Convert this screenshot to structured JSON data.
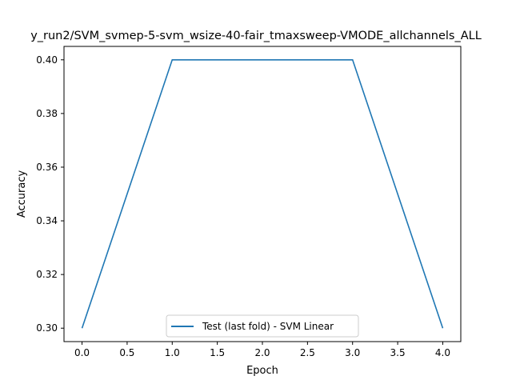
{
  "chart_data": {
    "type": "line",
    "title": "y_run2/SVM_svmep-5-svm_wsize-40-fair_tmaxsweep-VMODE_allchannels_ALL",
    "xlabel": "Epoch",
    "ylabel": "Accuracy",
    "xlim": [
      -0.2,
      4.2
    ],
    "ylim": [
      0.295,
      0.405
    ],
    "xticks": [
      "0.0",
      "0.5",
      "1.0",
      "1.5",
      "2.0",
      "2.5",
      "3.0",
      "3.5",
      "4.0"
    ],
    "yticks": [
      "0.30",
      "0.32",
      "0.34",
      "0.36",
      "0.38",
      "0.40"
    ],
    "grid": false,
    "legend_position": "lower center",
    "series": [
      {
        "name": "Test (last fold) - SVM Linear",
        "color": "#1f77b4",
        "x": [
          0,
          1,
          2,
          3,
          4
        ],
        "y": [
          0.3,
          0.4,
          0.4,
          0.4,
          0.3
        ]
      }
    ]
  }
}
